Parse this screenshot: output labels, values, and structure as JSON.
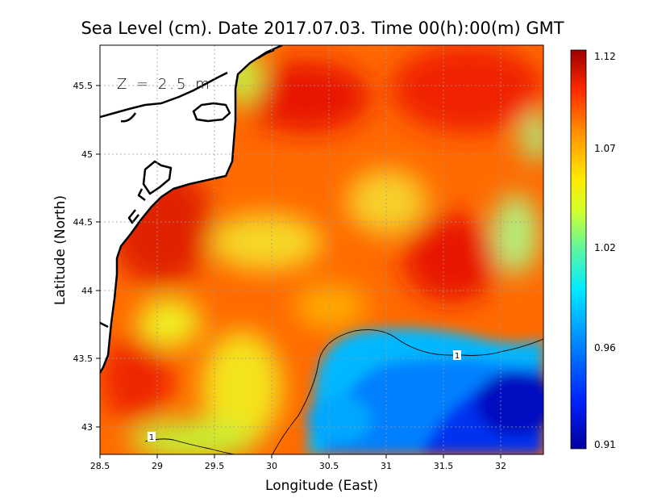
{
  "title": "Sea Level (cm). Date 2017.07.03. Time 00(h):00(m) GMT",
  "depth_label": "Z = 2.5 m",
  "x_axis_label": "Longitude (East)",
  "y_axis_label": "Latitude (North)",
  "x_ticks": [
    "28.5",
    "29",
    "29.5",
    "30",
    "30.5",
    "31",
    "31.5",
    "32"
  ],
  "y_ticks": [
    "43",
    "43.5",
    "44",
    "44.5",
    "45",
    "45.5"
  ],
  "colorbar": {
    "min": 0.91,
    "max": 1.12,
    "tick_labels": [
      "1.12",
      "1.07",
      "1.02",
      "0.96",
      "0.91"
    ],
    "colormap": "jet"
  },
  "contour_labels": [
    "1",
    "1"
  ],
  "colors": {
    "land": "#ffffff",
    "coastline": "#000000",
    "grid": "#9a9a9a"
  },
  "chart_data": {
    "type": "heatmap",
    "title": "Sea Level (cm). Date 2017.07.03. Time 00(h):00(m) GMT",
    "xlabel": "Longitude (East)",
    "ylabel": "Latitude (North)",
    "xlim": [
      28.5,
      32.4
    ],
    "ylim": [
      42.8,
      45.8
    ],
    "colorbar_range": [
      0.91,
      1.12
    ],
    "contour_level": 1,
    "grid": true
  }
}
